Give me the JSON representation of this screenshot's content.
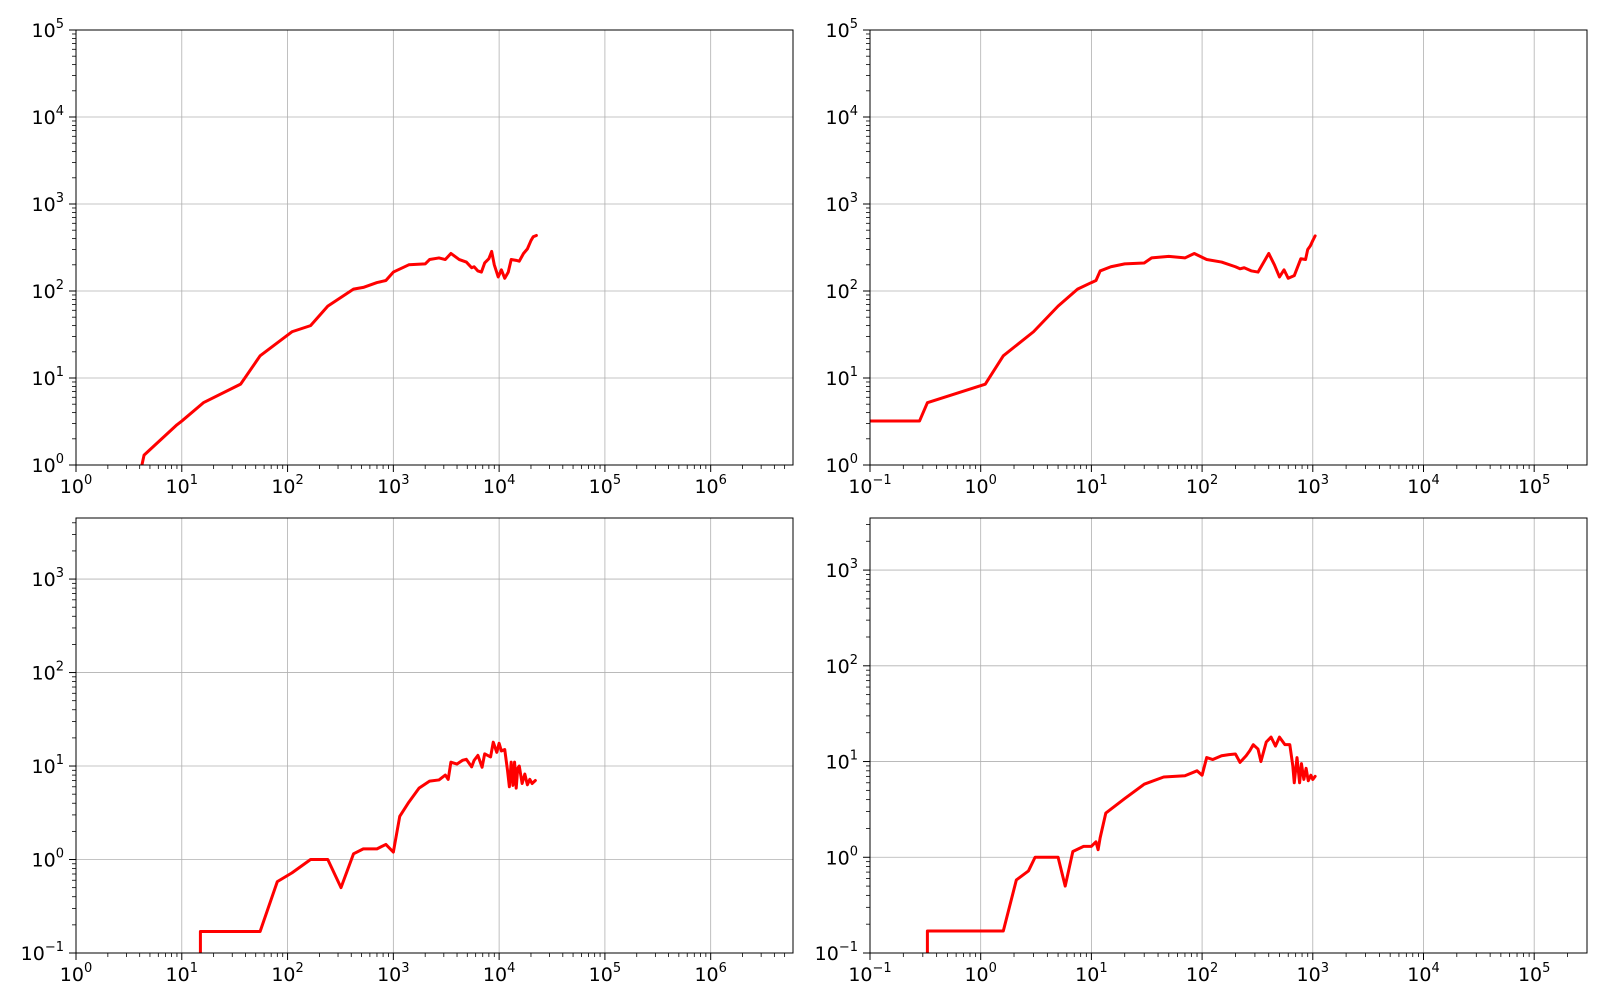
{
  "chart_data": [
    {
      "type": "line",
      "x_scale": "log",
      "y_scale": "log",
      "xlim": [
        1,
        6000000
      ],
      "ylim": [
        1,
        100000
      ],
      "grid": true,
      "x_ticks": [
        {
          "mant": "10",
          "exp": "0",
          "value": 1
        },
        {
          "mant": "10",
          "exp": "1",
          "value": 10
        },
        {
          "mant": "10",
          "exp": "2",
          "value": 100
        },
        {
          "mant": "10",
          "exp": "3",
          "value": 1000
        },
        {
          "mant": "10",
          "exp": "4",
          "value": 10000
        },
        {
          "mant": "10",
          "exp": "5",
          "value": 100000
        },
        {
          "mant": "10",
          "exp": "6",
          "value": 1000000
        }
      ],
      "y_ticks": [
        {
          "mant": "10",
          "exp": "0",
          "value": 1
        },
        {
          "mant": "10",
          "exp": "1",
          "value": 10
        },
        {
          "mant": "10",
          "exp": "2",
          "value": 100
        },
        {
          "mant": "10",
          "exp": "3",
          "value": 1000
        },
        {
          "mant": "10",
          "exp": "4",
          "value": 10000
        },
        {
          "mant": "10",
          "exp": "5",
          "value": 100000
        }
      ],
      "series": [
        {
          "color": "#ff0000",
          "x": [
            4.2,
            4.4,
            9,
            10,
            16,
            36,
            55,
            110,
            165,
            240,
            420,
            520,
            700,
            850,
            1000,
            1400,
            2000,
            2200,
            2700,
            3100,
            3500,
            4200,
            4900,
            5500,
            5800,
            6300,
            6800,
            7300,
            8000,
            8500,
            9000,
            9800,
            10500,
            11300,
            12200,
            13000,
            14500,
            15500,
            17000,
            18500,
            20000,
            21000,
            22500
          ],
          "y": [
            1,
            1.3,
            2.9,
            3.2,
            5.2,
            8.5,
            18,
            34,
            40,
            67,
            105,
            110,
            125,
            132,
            165,
            200,
            205,
            230,
            240,
            230,
            270,
            230,
            215,
            185,
            190,
            170,
            165,
            210,
            235,
            285,
            200,
            145,
            175,
            140,
            165,
            230,
            225,
            220,
            270,
            305,
            380,
            420,
            435
          ]
        }
      ]
    },
    {
      "type": "line",
      "x_scale": "log",
      "y_scale": "log",
      "xlim": [
        0.1,
        300000
      ],
      "ylim": [
        1,
        100000
      ],
      "grid": true,
      "x_ticks": [
        {
          "mant": "10",
          "exp": "−1",
          "value": 0.1
        },
        {
          "mant": "10",
          "exp": "0",
          "value": 1
        },
        {
          "mant": "10",
          "exp": "1",
          "value": 10
        },
        {
          "mant": "10",
          "exp": "2",
          "value": 100
        },
        {
          "mant": "10",
          "exp": "3",
          "value": 1000
        },
        {
          "mant": "10",
          "exp": "4",
          "value": 10000
        },
        {
          "mant": "10",
          "exp": "5",
          "value": 100000
        }
      ],
      "y_ticks": [
        {
          "mant": "10",
          "exp": "0",
          "value": 1
        },
        {
          "mant": "10",
          "exp": "1",
          "value": 10
        },
        {
          "mant": "10",
          "exp": "2",
          "value": 100
        },
        {
          "mant": "10",
          "exp": "3",
          "value": 1000
        },
        {
          "mant": "10",
          "exp": "4",
          "value": 10000
        },
        {
          "mant": "10",
          "exp": "5",
          "value": 100000
        }
      ],
      "series": [
        {
          "color": "#ff0000",
          "x": [
            0.1,
            0.28,
            0.33,
            1.1,
            1.6,
            3,
            5,
            7.5,
            10,
            11,
            12,
            15,
            20,
            30,
            35,
            50,
            70,
            85,
            110,
            150,
            200,
            220,
            240,
            280,
            320,
            400,
            450,
            500,
            550,
            600,
            680,
            780,
            860,
            900,
            950,
            1000,
            1050
          ],
          "y": [
            3.2,
            3.2,
            5.2,
            8.5,
            18,
            34,
            67,
            105,
            125,
            132,
            170,
            190,
            205,
            210,
            240,
            250,
            240,
            270,
            230,
            215,
            190,
            180,
            185,
            170,
            165,
            270,
            200,
            145,
            175,
            140,
            150,
            235,
            230,
            300,
            330,
            380,
            430
          ]
        }
      ]
    },
    {
      "type": "line",
      "x_scale": "log",
      "y_scale": "log",
      "xlim": [
        1,
        6000000
      ],
      "ylim": [
        0.1,
        4500
      ],
      "grid": true,
      "x_ticks": [
        {
          "mant": "10",
          "exp": "0",
          "value": 1
        },
        {
          "mant": "10",
          "exp": "1",
          "value": 10
        },
        {
          "mant": "10",
          "exp": "2",
          "value": 100
        },
        {
          "mant": "10",
          "exp": "3",
          "value": 1000
        },
        {
          "mant": "10",
          "exp": "4",
          "value": 10000
        },
        {
          "mant": "10",
          "exp": "5",
          "value": 100000
        },
        {
          "mant": "10",
          "exp": "6",
          "value": 1000000
        }
      ],
      "y_ticks": [
        {
          "mant": "10",
          "exp": "−1",
          "value": 0.1
        },
        {
          "mant": "10",
          "exp": "0",
          "value": 1
        },
        {
          "mant": "10",
          "exp": "1",
          "value": 10
        },
        {
          "mant": "10",
          "exp": "2",
          "value": 100
        },
        {
          "mant": "10",
          "exp": "3",
          "value": 1000
        }
      ],
      "series": [
        {
          "color": "#ff0000",
          "x": [
            15,
            15,
            55,
            80,
            110,
            165,
            240,
            320,
            420,
            520,
            700,
            850,
            1000,
            1150,
            1400,
            1750,
            2200,
            2700,
            3100,
            3300,
            3500,
            4000,
            4500,
            4900,
            5500,
            5800,
            6300,
            6900,
            7300,
            8300,
            8800,
            9500,
            10000,
            10500,
            11300,
            12000,
            12500,
            13000,
            13500,
            14000,
            14500,
            15000,
            15500,
            16500,
            17500,
            18500,
            19500,
            20500,
            22000
          ],
          "y": [
            0.1,
            0.17,
            0.17,
            0.58,
            0.72,
            1,
            1,
            0.5,
            1.15,
            1.3,
            1.3,
            1.45,
            1.2,
            2.9,
            4.1,
            5.8,
            6.9,
            7.1,
            8,
            7.2,
            11,
            10.5,
            11.5,
            11.8,
            9.8,
            11.5,
            13,
            9.7,
            13.5,
            12.5,
            18,
            14,
            17.5,
            14.5,
            15,
            9,
            6,
            11,
            6.2,
            11,
            5.8,
            9.5,
            10,
            6.5,
            8.2,
            6.3,
            7.2,
            6.5,
            7
          ]
        }
      ]
    },
    {
      "type": "line",
      "x_scale": "log",
      "y_scale": "log",
      "xlim": [
        0.1,
        300000
      ],
      "ylim": [
        0.1,
        3500
      ],
      "grid": true,
      "x_ticks": [
        {
          "mant": "10",
          "exp": "−1",
          "value": 0.1
        },
        {
          "mant": "10",
          "exp": "0",
          "value": 1
        },
        {
          "mant": "10",
          "exp": "1",
          "value": 10
        },
        {
          "mant": "10",
          "exp": "2",
          "value": 100
        },
        {
          "mant": "10",
          "exp": "3",
          "value": 1000
        },
        {
          "mant": "10",
          "exp": "4",
          "value": 10000
        },
        {
          "mant": "10",
          "exp": "5",
          "value": 100000
        }
      ],
      "y_ticks": [
        {
          "mant": "10",
          "exp": "−1",
          "value": 0.1
        },
        {
          "mant": "10",
          "exp": "0",
          "value": 1
        },
        {
          "mant": "10",
          "exp": "1",
          "value": 10
        },
        {
          "mant": "10",
          "exp": "2",
          "value": 100
        },
        {
          "mant": "10",
          "exp": "3",
          "value": 1000
        }
      ],
      "series": [
        {
          "color": "#ff0000",
          "x": [
            0.33,
            0.33,
            1.6,
            2.1,
            2.7,
            3.1,
            5,
            5.8,
            6.8,
            8.5,
            10,
            11,
            11.5,
            12,
            13.5,
            20,
            30,
            45,
            70,
            90,
            100,
            110,
            125,
            150,
            175,
            200,
            220,
            250,
            270,
            290,
            320,
            340,
            380,
            420,
            460,
            500,
            560,
            620,
            660,
            680,
            720,
            760,
            790,
            830,
            870,
            910,
            960,
            1000,
            1050
          ],
          "y": [
            0.1,
            0.17,
            0.17,
            0.58,
            0.72,
            1,
            1,
            0.5,
            1.15,
            1.3,
            1.3,
            1.45,
            1.2,
            1.6,
            2.9,
            4.1,
            5.8,
            6.9,
            7.1,
            8,
            7.2,
            11,
            10.5,
            11.5,
            11.8,
            12,
            9.8,
            11.5,
            13,
            15,
            13.5,
            10,
            16,
            18,
            14.5,
            18,
            15,
            15,
            9,
            6,
            11,
            6,
            9.5,
            6.5,
            8.5,
            6.3,
            7.2,
            6.5,
            7
          ]
        }
      ]
    }
  ]
}
